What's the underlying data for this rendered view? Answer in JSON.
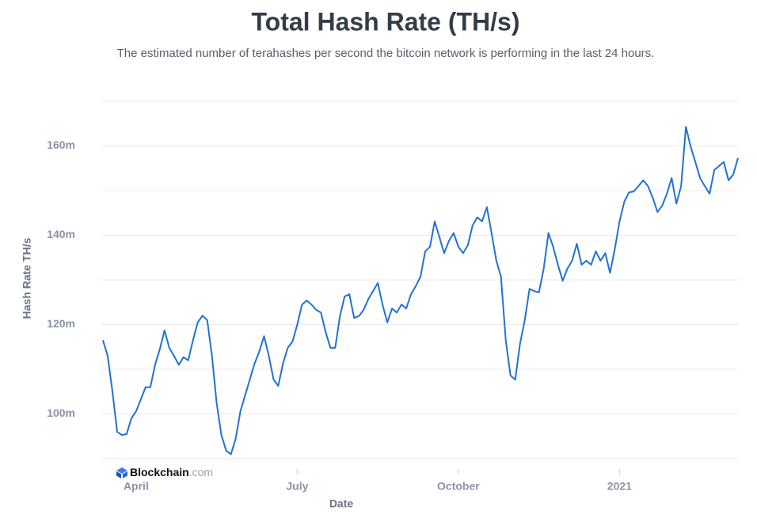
{
  "chart_data": {
    "type": "line",
    "title": "Total Hash Rate (TH/s)",
    "subtitle": "The estimated number of terahashes per second the bitcoin network is performing in the last 24 hours.",
    "x_label": "Date",
    "y_label": "Hash Rate TH/s",
    "watermark": {
      "brand": "Blockchain",
      "domain": ".com"
    },
    "xlim": [
      0,
      134
    ],
    "xticks": [
      {
        "value": 7,
        "label": "April"
      },
      {
        "value": 41,
        "label": "July"
      },
      {
        "value": 75,
        "label": "October"
      },
      {
        "value": 109,
        "label": "2021"
      }
    ],
    "ylim": [
      90000000,
      170000000
    ],
    "yticks": [
      {
        "value": 100000000,
        "label": "100m"
      },
      {
        "value": 120000000,
        "label": "120m"
      },
      {
        "value": 140000000,
        "label": "140m"
      },
      {
        "value": 160000000,
        "label": "160m"
      }
    ],
    "ygrid": [
      90000000,
      100000000,
      110000000,
      120000000,
      130000000,
      140000000,
      150000000,
      160000000,
      170000000
    ],
    "grid": true,
    "series": [
      {
        "color": "#2271d6",
        "values": [
          116500000,
          113000000,
          105000000,
          96000000,
          95300000,
          95500000,
          99000000,
          100600000,
          103300000,
          106000000,
          106000000,
          111000000,
          114500000,
          118700000,
          114800000,
          113000000,
          111000000,
          112700000,
          112000000,
          116500000,
          120500000,
          122000000,
          121000000,
          113000000,
          102400000,
          95300000,
          91800000,
          91000000,
          94400000,
          100600000,
          104200000,
          107700000,
          111300000,
          114000000,
          117400000,
          113000000,
          107700000,
          106300000,
          111300000,
          114800000,
          116200000,
          120000000,
          124500000,
          125400000,
          124500000,
          123300000,
          122700000,
          118300000,
          114800000,
          114800000,
          121900000,
          126300000,
          126800000,
          121500000,
          121900000,
          123300000,
          125700000,
          127500000,
          129300000,
          124500000,
          120500000,
          123600000,
          122700000,
          124500000,
          123600000,
          126800000,
          128600000,
          130700000,
          136400000,
          137400000,
          143100000,
          139600000,
          136000000,
          138700000,
          140500000,
          137400000,
          136000000,
          137800000,
          142200000,
          144000000,
          143100000,
          146300000,
          140500000,
          134300000,
          130700000,
          116500000,
          108600000,
          107700000,
          115700000,
          121000000,
          128000000,
          127500000,
          127200000,
          132500000,
          140500000,
          137400000,
          133400000,
          129800000,
          132500000,
          134300000,
          138100000,
          133400000,
          134300000,
          133400000,
          136400000,
          134300000,
          136000000,
          131600000,
          136900000,
          143100000,
          147500000,
          149600000,
          149800000,
          151000000,
          152300000,
          151000000,
          148400000,
          145200000,
          146600000,
          149300000,
          152800000,
          147100000,
          151000000,
          164300000,
          159900000,
          156400000,
          152800000,
          151000000,
          149300000,
          154600000,
          155500000,
          156400000,
          152300000,
          153600000,
          157300000
        ]
      }
    ]
  }
}
